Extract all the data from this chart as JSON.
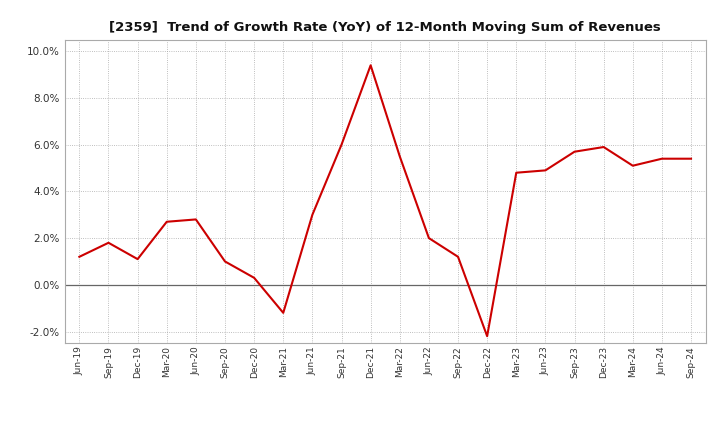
{
  "title": "[2359]  Trend of Growth Rate (YoY) of 12-Month Moving Sum of Revenues",
  "line_color": "#CC0000",
  "background_color": "#FFFFFF",
  "grid_color": "#AAAAAA",
  "ylim": [
    -0.025,
    0.105
  ],
  "yticks": [
    -0.02,
    0.0,
    0.02,
    0.04,
    0.06,
    0.08,
    0.1
  ],
  "labels": [
    "Jun-19",
    "Sep-19",
    "Dec-19",
    "Mar-20",
    "Jun-20",
    "Sep-20",
    "Dec-20",
    "Mar-21",
    "Jun-21",
    "Sep-21",
    "Dec-21",
    "Mar-22",
    "Jun-22",
    "Sep-22",
    "Dec-22",
    "Mar-23",
    "Jun-23",
    "Sep-23",
    "Dec-23",
    "Mar-24",
    "Jun-24",
    "Sep-24"
  ],
  "values": [
    0.012,
    0.018,
    0.011,
    0.027,
    0.028,
    0.01,
    0.003,
    -0.012,
    0.03,
    0.06,
    0.094,
    0.055,
    0.02,
    0.012,
    -0.022,
    0.048,
    0.049,
    0.057,
    0.059,
    0.051,
    0.054,
    0.054
  ]
}
